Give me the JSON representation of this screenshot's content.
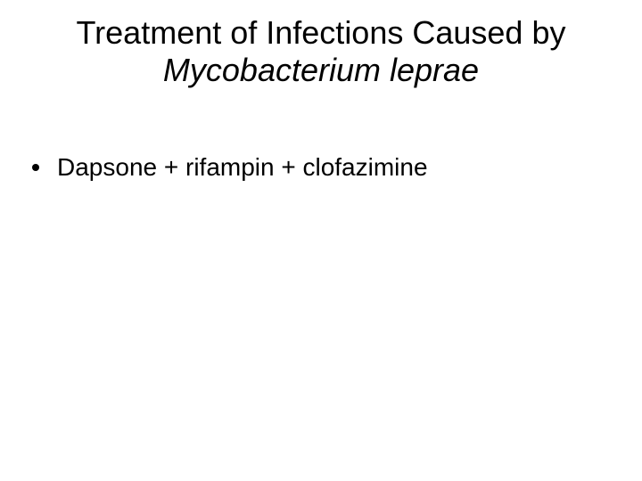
{
  "slide": {
    "background_color": "#ffffff",
    "text_color": "#000000",
    "title": {
      "line1": "Treatment of Infections Caused by",
      "line2": "Mycobacterium leprae",
      "font_size": 36,
      "font_weight": 400,
      "line1_style": "normal",
      "line2_style": "italic",
      "align": "center"
    },
    "bullets": [
      {
        "text": "Dapsone + rifampin + clofazimine",
        "font_size": 28,
        "bullet_color": "#000000"
      }
    ]
  }
}
